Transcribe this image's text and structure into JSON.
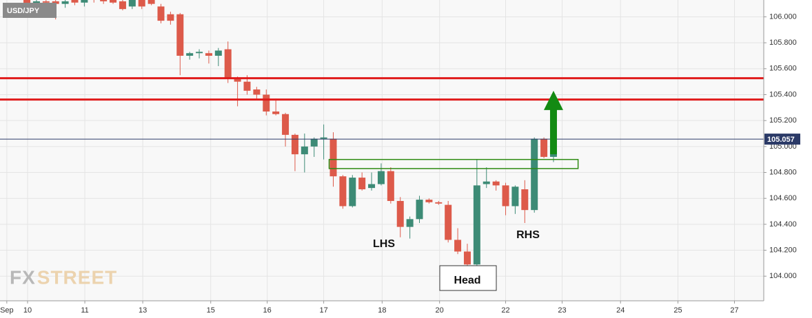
{
  "chart_data": {
    "type": "candlestick",
    "symbol": "USD/JPY",
    "watermark": [
      "FX",
      "STREET"
    ],
    "up_color": "#3d8b76",
    "down_color": "#dd5a4a",
    "grid": true,
    "xlim": [
      -2.81,
      76.96
    ],
    "xticks": [
      {
        "value": -2.1,
        "label": "Sep"
      },
      {
        "value": 0.07,
        "label": "10"
      },
      {
        "value": 6.05,
        "label": "11"
      },
      {
        "value": 12.1,
        "label": "13"
      },
      {
        "value": 19.2,
        "label": "15"
      },
      {
        "value": 25.1,
        "label": "16"
      },
      {
        "value": 31.0,
        "label": "17"
      },
      {
        "value": 37.1,
        "label": "18"
      },
      {
        "value": 43.1,
        "label": "20"
      },
      {
        "value": 50.0,
        "label": "22"
      },
      {
        "value": 55.9,
        "label": "23"
      },
      {
        "value": 62.0,
        "label": "24"
      },
      {
        "value": 68.0,
        "label": "25"
      },
      {
        "value": 73.9,
        "label": "27"
      }
    ],
    "ylim": [
      103.81,
      106.13
    ],
    "yticks": [
      {
        "value": 104.0,
        "label": "104.000"
      },
      {
        "value": 104.2,
        "label": "104.200"
      },
      {
        "value": 104.4,
        "label": "104.400"
      },
      {
        "value": 104.6,
        "label": "104.600"
      },
      {
        "value": 104.8,
        "label": "104.800"
      },
      {
        "value": 105.0,
        "label": "105.000"
      },
      {
        "value": 105.2,
        "label": "105.200"
      },
      {
        "value": 105.4,
        "label": "105.400"
      },
      {
        "value": 105.6,
        "label": "105.600"
      },
      {
        "value": 105.8,
        "label": "105.800"
      },
      {
        "value": 106.0,
        "label": "106.000"
      }
    ],
    "last_price": 105.057,
    "levels": [
      {
        "value": 105.527,
        "color": "#e01b1b"
      },
      {
        "value": 105.362,
        "color": "#e01b1b"
      }
    ],
    "zone": {
      "x": [
        32,
        58
      ],
      "y": [
        104.83,
        104.9
      ],
      "color": "#2e8b12"
    },
    "arrow": {
      "x": 55,
      "y": [
        104.94,
        105.43
      ],
      "color": "#138a13"
    },
    "annotations": [
      "LHS",
      "Head",
      "RHS"
    ],
    "candles": {
      "x": [
        0,
        1,
        2,
        3,
        4,
        5,
        6,
        7,
        8,
        9,
        10,
        11,
        12,
        13,
        14,
        15,
        16,
        17,
        18,
        19,
        20,
        21,
        22,
        23,
        24,
        25,
        26,
        27,
        28,
        29,
        30,
        31,
        32,
        33,
        34,
        35,
        36,
        37,
        38,
        39,
        40,
        41,
        42,
        43,
        44,
        45,
        46,
        47,
        48,
        49,
        50,
        51,
        52,
        53,
        54,
        55
      ],
      "open": [
        106.13,
        106.1,
        106.12,
        106.12,
        106.1,
        106.13,
        106.11,
        106.14,
        106.13,
        106.13,
        106.12,
        106.08,
        106.14,
        106.14,
        106.08,
        106.02,
        106.02,
        105.7,
        105.72,
        105.72,
        105.7,
        105.75,
        105.52,
        105.5,
        105.44,
        105.4,
        105.27,
        105.25,
        105.09,
        104.94,
        105.0,
        105.06,
        105.06,
        104.77,
        104.54,
        104.76,
        104.68,
        104.71,
        104.81,
        104.58,
        104.38,
        104.44,
        104.59,
        104.57,
        104.55,
        104.28,
        104.19,
        104.09,
        104.71,
        104.73,
        104.7,
        104.54,
        104.67,
        104.51,
        105.06,
        104.92
      ],
      "high": [
        106.16,
        106.14,
        106.15,
        106.14,
        106.14,
        106.15,
        106.16,
        106.17,
        106.16,
        106.15,
        106.14,
        106.15,
        106.16,
        106.16,
        106.1,
        106.04,
        106.03,
        105.73,
        105.75,
        105.74,
        105.76,
        105.81,
        105.54,
        105.55,
        105.46,
        105.44,
        105.37,
        105.26,
        105.1,
        105.1,
        105.07,
        105.17,
        105.11,
        104.78,
        104.78,
        104.8,
        104.8,
        104.87,
        104.84,
        104.61,
        104.46,
        104.62,
        104.6,
        104.58,
        104.58,
        104.37,
        104.25,
        104.9,
        104.84,
        104.74,
        104.72,
        104.7,
        104.74,
        105.07,
        105.07,
        104.99
      ],
      "low": [
        106.08,
        106.08,
        106.09,
        105.98,
        106.07,
        106.09,
        106.08,
        106.11,
        106.1,
        106.1,
        106.05,
        106.06,
        106.06,
        106.09,
        105.95,
        105.94,
        105.55,
        105.67,
        105.68,
        105.64,
        105.62,
        105.49,
        105.31,
        105.4,
        105.37,
        105.24,
        105.24,
        105.0,
        104.81,
        104.8,
        104.92,
        104.9,
        104.69,
        104.52,
        104.53,
        104.66,
        104.66,
        104.7,
        104.56,
        104.3,
        104.29,
        104.41,
        104.56,
        104.55,
        104.26,
        104.17,
        103.99,
        104.07,
        104.68,
        104.66,
        104.47,
        104.48,
        104.41,
        104.49,
        104.91,
        104.88
      ],
      "close": [
        106.1,
        106.12,
        106.11,
        106.1,
        106.12,
        106.11,
        106.14,
        106.13,
        106.12,
        106.11,
        106.06,
        106.13,
        106.08,
        106.1,
        105.97,
        105.97,
        105.7,
        105.72,
        105.73,
        105.7,
        105.74,
        105.52,
        105.5,
        105.43,
        105.4,
        105.27,
        105.25,
        105.09,
        104.94,
        105.0,
        105.06,
        105.07,
        104.77,
        104.54,
        104.76,
        104.67,
        104.71,
        104.81,
        104.58,
        104.38,
        104.44,
        104.59,
        104.57,
        104.56,
        104.28,
        104.19,
        104.09,
        104.7,
        104.73,
        104.7,
        104.54,
        104.69,
        104.51,
        105.06,
        104.92,
        104.97
      ]
    }
  }
}
